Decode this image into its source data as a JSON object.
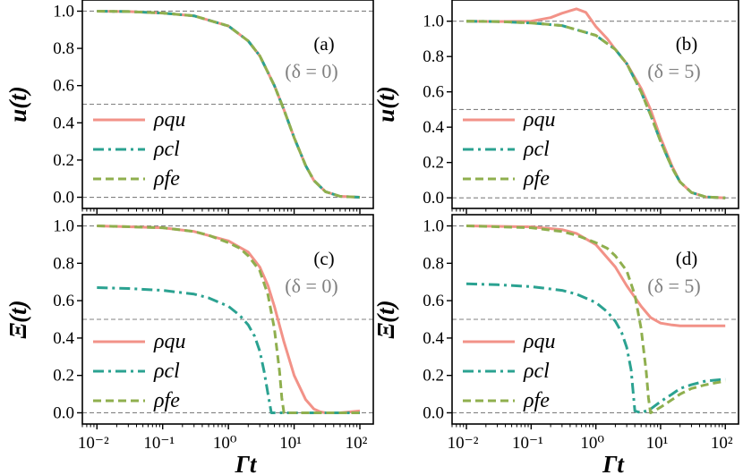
{
  "colors": {
    "qu": "#F29288",
    "cl": "#2BA291",
    "fe": "#8FAF4E",
    "ref": "#808080",
    "frame": "#000000"
  },
  "chart_data": [
    {
      "type": "line",
      "panel": "(a)",
      "delta_label": "(δ = 0)",
      "ylabel": "u(t)",
      "xlabel": "",
      "xscale": "log",
      "xlim": [
        0.006,
        160
      ],
      "ylim": [
        -0.06,
        1.06
      ],
      "hlines": [
        0,
        0.5,
        1
      ],
      "x_ticks": [
        "10⁻²",
        "10⁻¹",
        "10⁰",
        "10¹",
        "10²"
      ],
      "y_ticks": [
        "0.0",
        "0.2",
        "0.4",
        "0.6",
        "0.8",
        "1.0"
      ],
      "legend": [
        "ρqu",
        "ρcl",
        "ρfe"
      ],
      "series": [
        {
          "name": "ρqu",
          "x": [
            0.01,
            0.03,
            0.1,
            0.3,
            1,
            2,
            3,
            5,
            7,
            10,
            15,
            20,
            30,
            50,
            100
          ],
          "y": [
            1.0,
            0.998,
            0.99,
            0.975,
            0.92,
            0.84,
            0.76,
            0.6,
            0.47,
            0.32,
            0.17,
            0.09,
            0.03,
            0.005,
            0.0
          ]
        },
        {
          "name": "ρcl",
          "x": [
            0.01,
            0.03,
            0.1,
            0.3,
            1,
            2,
            3,
            5,
            7,
            10,
            15,
            20,
            30,
            50,
            100
          ],
          "y": [
            1.0,
            0.998,
            0.99,
            0.975,
            0.92,
            0.84,
            0.76,
            0.6,
            0.47,
            0.32,
            0.17,
            0.09,
            0.03,
            0.005,
            0.0
          ]
        },
        {
          "name": "ρfe",
          "x": [
            0.01,
            0.03,
            0.1,
            0.3,
            1,
            2,
            3,
            5,
            7,
            10,
            15,
            20,
            30,
            50,
            100
          ],
          "y": [
            1.0,
            0.998,
            0.99,
            0.975,
            0.92,
            0.84,
            0.76,
            0.6,
            0.47,
            0.32,
            0.17,
            0.09,
            0.03,
            0.005,
            0.0
          ]
        }
      ]
    },
    {
      "type": "line",
      "panel": "(b)",
      "delta_label": "(δ = 5)",
      "ylabel": "u(t)",
      "xlabel": "",
      "xscale": "log",
      "xlim": [
        0.006,
        160
      ],
      "ylim": [
        -0.06,
        1.12
      ],
      "hlines": [
        0,
        0.5,
        1
      ],
      "x_ticks": [
        "10⁻²",
        "10⁻¹",
        "10⁰",
        "10¹",
        "10²"
      ],
      "y_ticks": [
        "0.0",
        "0.2",
        "0.4",
        "0.6",
        "0.8",
        "1.0"
      ],
      "legend": [
        "ρqu",
        "ρcl",
        "ρfe"
      ],
      "series": [
        {
          "name": "ρqu",
          "x": [
            0.01,
            0.03,
            0.1,
            0.2,
            0.3,
            0.5,
            0.7,
            1,
            1.5,
            2,
            3,
            5,
            7,
            10,
            15,
            20,
            30,
            50,
            100
          ],
          "y": [
            1.0,
            0.998,
            1.0,
            1.02,
            1.045,
            1.07,
            1.05,
            0.97,
            0.9,
            0.84,
            0.76,
            0.62,
            0.5,
            0.34,
            0.18,
            0.09,
            0.03,
            0.005,
            0.0
          ]
        },
        {
          "name": "ρcl",
          "x": [
            0.01,
            0.03,
            0.1,
            0.3,
            1,
            2,
            3,
            5,
            7,
            10,
            15,
            20,
            30,
            50,
            100
          ],
          "y": [
            1.0,
            0.998,
            0.99,
            0.975,
            0.92,
            0.84,
            0.76,
            0.6,
            0.47,
            0.32,
            0.17,
            0.09,
            0.03,
            0.005,
            0.0
          ]
        },
        {
          "name": "ρfe",
          "x": [
            0.01,
            0.03,
            0.1,
            0.3,
            1,
            2,
            3,
            5,
            7,
            10,
            15,
            20,
            30,
            50,
            100
          ],
          "y": [
            1.0,
            0.998,
            0.99,
            0.975,
            0.92,
            0.84,
            0.76,
            0.6,
            0.47,
            0.32,
            0.17,
            0.09,
            0.03,
            0.005,
            0.0
          ]
        }
      ]
    },
    {
      "type": "line",
      "panel": "(c)",
      "delta_label": "(δ = 0)",
      "ylabel": "Ξ(t)",
      "xlabel": "Γt",
      "xscale": "log",
      "xlim": [
        0.006,
        160
      ],
      "ylim": [
        -0.06,
        1.06
      ],
      "hlines": [
        0,
        0.5,
        1
      ],
      "x_ticks": [
        "10⁻²",
        "10⁻¹",
        "10⁰",
        "10¹",
        "10²"
      ],
      "y_ticks": [
        "0.0",
        "0.2",
        "0.4",
        "0.6",
        "0.8",
        "1.0"
      ],
      "legend": [
        "ρqu",
        "ρcl",
        "ρfe"
      ],
      "series": [
        {
          "name": "ρqu",
          "x": [
            0.01,
            0.1,
            0.3,
            1,
            2,
            3,
            4,
            5,
            7,
            10,
            15,
            20,
            25,
            30,
            50,
            100
          ],
          "y": [
            1.0,
            0.99,
            0.97,
            0.92,
            0.86,
            0.78,
            0.68,
            0.57,
            0.38,
            0.2,
            0.07,
            0.02,
            0.005,
            0.0,
            0.0,
            0.01
          ]
        },
        {
          "name": "ρcl",
          "x": [
            0.01,
            0.03,
            0.1,
            0.3,
            0.5,
            1,
            1.5,
            2,
            2.5,
            3,
            3.5,
            4,
            4.5,
            5,
            7,
            10,
            30,
            100
          ],
          "y": [
            0.67,
            0.665,
            0.655,
            0.635,
            0.615,
            0.57,
            0.52,
            0.47,
            0.41,
            0.33,
            0.22,
            0.1,
            0.0,
            0.0,
            0.0,
            0.0,
            0.0,
            0.0
          ]
        },
        {
          "name": "ρfe",
          "x": [
            0.01,
            0.1,
            0.3,
            0.5,
            1,
            1.5,
            2,
            3,
            4,
            5,
            6,
            6.5,
            7,
            10,
            30,
            100
          ],
          "y": [
            1.0,
            0.99,
            0.97,
            0.95,
            0.91,
            0.88,
            0.84,
            0.76,
            0.63,
            0.45,
            0.22,
            0.08,
            0.0,
            0.0,
            0.0,
            0.0
          ]
        }
      ]
    },
    {
      "type": "line",
      "panel": "(d)",
      "delta_label": "(δ = 5)",
      "ylabel": "Ξ(t)",
      "xlabel": "Γt",
      "xscale": "log",
      "xlim": [
        0.006,
        160
      ],
      "ylim": [
        -0.06,
        1.06
      ],
      "hlines": [
        0,
        0.5,
        1
      ],
      "x_ticks": [
        "10⁻²",
        "10⁻¹",
        "10⁰",
        "10¹",
        "10²"
      ],
      "y_ticks": [
        "0.0",
        "0.2",
        "0.4",
        "0.6",
        "0.8",
        "1.0"
      ],
      "legend": [
        "ρqu",
        "ρcl",
        "ρfe"
      ],
      "series": [
        {
          "name": "ρqu",
          "x": [
            0.01,
            0.1,
            0.3,
            0.5,
            1,
            2,
            3,
            5,
            7,
            10,
            15,
            20,
            30,
            50,
            100
          ],
          "y": [
            1.0,
            0.995,
            0.98,
            0.96,
            0.9,
            0.78,
            0.68,
            0.57,
            0.51,
            0.48,
            0.47,
            0.465,
            0.465,
            0.465,
            0.465
          ]
        },
        {
          "name": "ρcl",
          "x": [
            0.01,
            0.03,
            0.1,
            0.3,
            0.5,
            1,
            1.5,
            2,
            2.5,
            3,
            3.5,
            4,
            5,
            7,
            10,
            15,
            20,
            30,
            50,
            100
          ],
          "y": [
            0.69,
            0.685,
            0.675,
            0.655,
            0.635,
            0.59,
            0.54,
            0.49,
            0.43,
            0.35,
            0.23,
            0.01,
            0.0,
            0.02,
            0.06,
            0.1,
            0.13,
            0.15,
            0.17,
            0.18
          ]
        },
        {
          "name": "ρfe",
          "x": [
            0.01,
            0.1,
            0.3,
            0.5,
            1,
            1.5,
            2,
            3,
            4,
            5,
            6,
            6.5,
            7,
            8,
            10,
            15,
            20,
            30,
            50,
            100
          ],
          "y": [
            1.0,
            0.99,
            0.97,
            0.95,
            0.91,
            0.88,
            0.84,
            0.76,
            0.63,
            0.45,
            0.22,
            0.08,
            0.0,
            0.01,
            0.03,
            0.07,
            0.1,
            0.13,
            0.15,
            0.17
          ]
        }
      ]
    }
  ]
}
